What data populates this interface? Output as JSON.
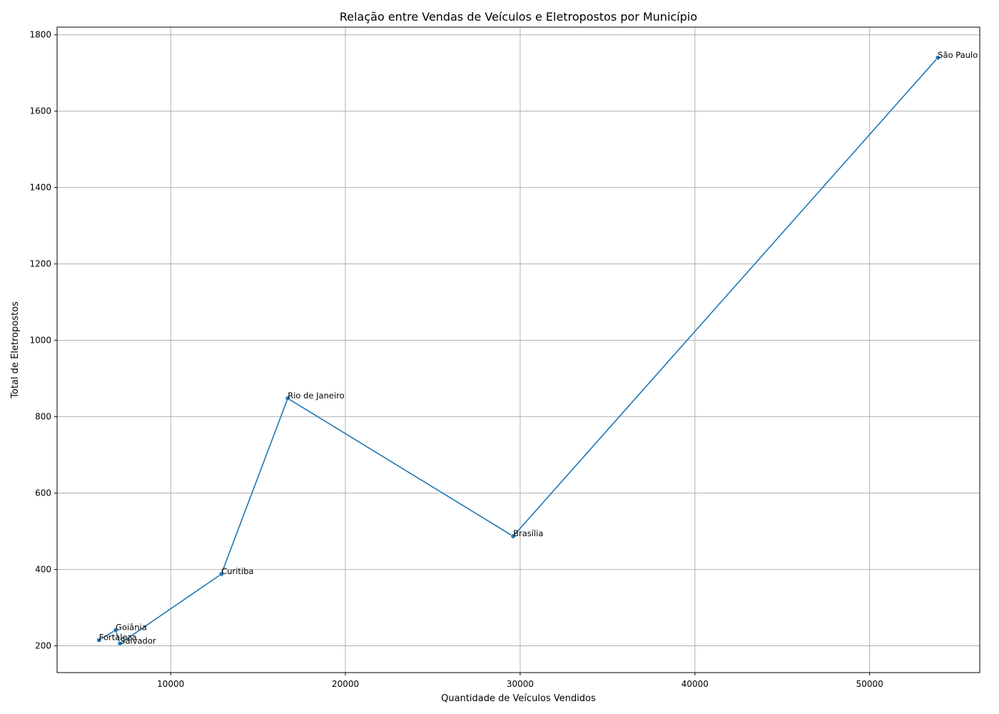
{
  "chart_data": {
    "type": "line",
    "title": "Relação entre Vendas de Veículos e Eletropostos por Município",
    "xlabel": "Quantidade de Veículos Vendidos",
    "ylabel": "Total de Eletropostos",
    "xlim": [
      3500,
      56300
    ],
    "ylim": [
      130,
      1820
    ],
    "xticks": [
      10000,
      20000,
      30000,
      40000,
      50000
    ],
    "yticks": [
      200,
      400,
      600,
      800,
      1000,
      1200,
      1400,
      1600,
      1800
    ],
    "grid": true,
    "color": "#1f77b4",
    "points": [
      {
        "label": "Fortaleza",
        "x": 5900,
        "y": 215
      },
      {
        "label": "Goiânia",
        "x": 6850,
        "y": 241
      },
      {
        "label": "Salvador",
        "x": 7100,
        "y": 206
      },
      {
        "label": "Curitiba",
        "x": 12900,
        "y": 388
      },
      {
        "label": "Rio de Janeiro",
        "x": 16700,
        "y": 848
      },
      {
        "label": "Brasília",
        "x": 29600,
        "y": 487
      },
      {
        "label": "São Paulo",
        "x": 53900,
        "y": 1740
      }
    ]
  }
}
